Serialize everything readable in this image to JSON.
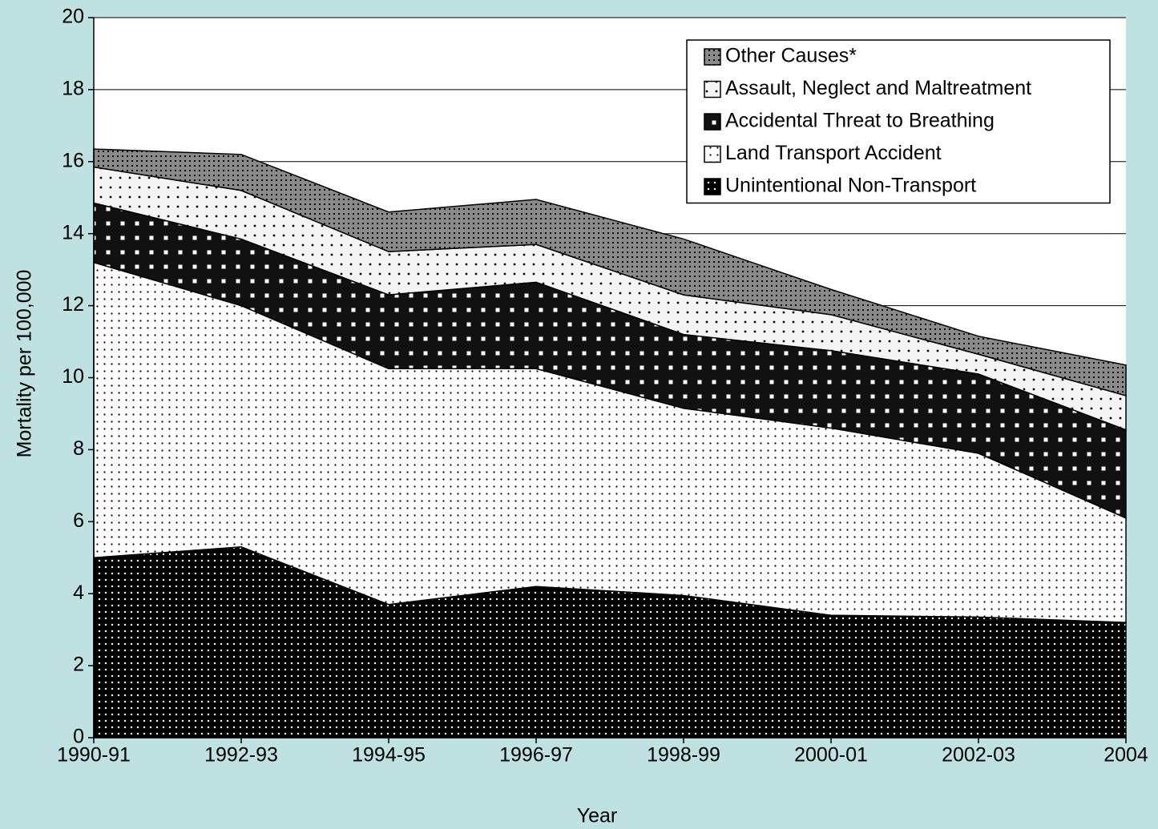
{
  "chart_data": {
    "type": "stacked_area",
    "xlabel": "Year",
    "ylabel": "Mortality per 100,000",
    "categories": [
      "1990-91",
      "1992-93",
      "1994-95",
      "1996-97",
      "1998-99",
      "2000-01",
      "2002-03",
      "2004"
    ],
    "series": [
      {
        "name": "Unintentional Non-Transport",
        "color": "#000000",
        "values": [
          5.0,
          5.3,
          3.7,
          4.2,
          3.95,
          3.4,
          3.35,
          3.2
        ]
      },
      {
        "name": "Land Transport Accident",
        "color": "#ffffff",
        "values": [
          8.2,
          6.7,
          6.55,
          6.05,
          5.2,
          5.2,
          4.55,
          2.9
        ]
      },
      {
        "name": "Accidental Threat to Breathing",
        "color": "#111111",
        "values": [
          1.65,
          1.85,
          2.05,
          2.4,
          2.05,
          2.15,
          2.2,
          2.45
        ]
      },
      {
        "name": "Assault, Neglect and Maltreatment",
        "color": "#f4f4f4",
        "values": [
          1.0,
          1.35,
          1.2,
          1.05,
          1.1,
          1.0,
          0.55,
          0.95
        ]
      },
      {
        "name": "Other Causes*",
        "color": "#8a8a8a",
        "values": [
          0.5,
          1.0,
          1.1,
          1.25,
          1.55,
          0.7,
          0.5,
          0.85
        ]
      }
    ],
    "ylim": [
      0,
      20
    ],
    "yticks": [
      0,
      2,
      4,
      6,
      8,
      10,
      12,
      14,
      16,
      18,
      20
    ],
    "grid": true,
    "legend": "upper right"
  }
}
